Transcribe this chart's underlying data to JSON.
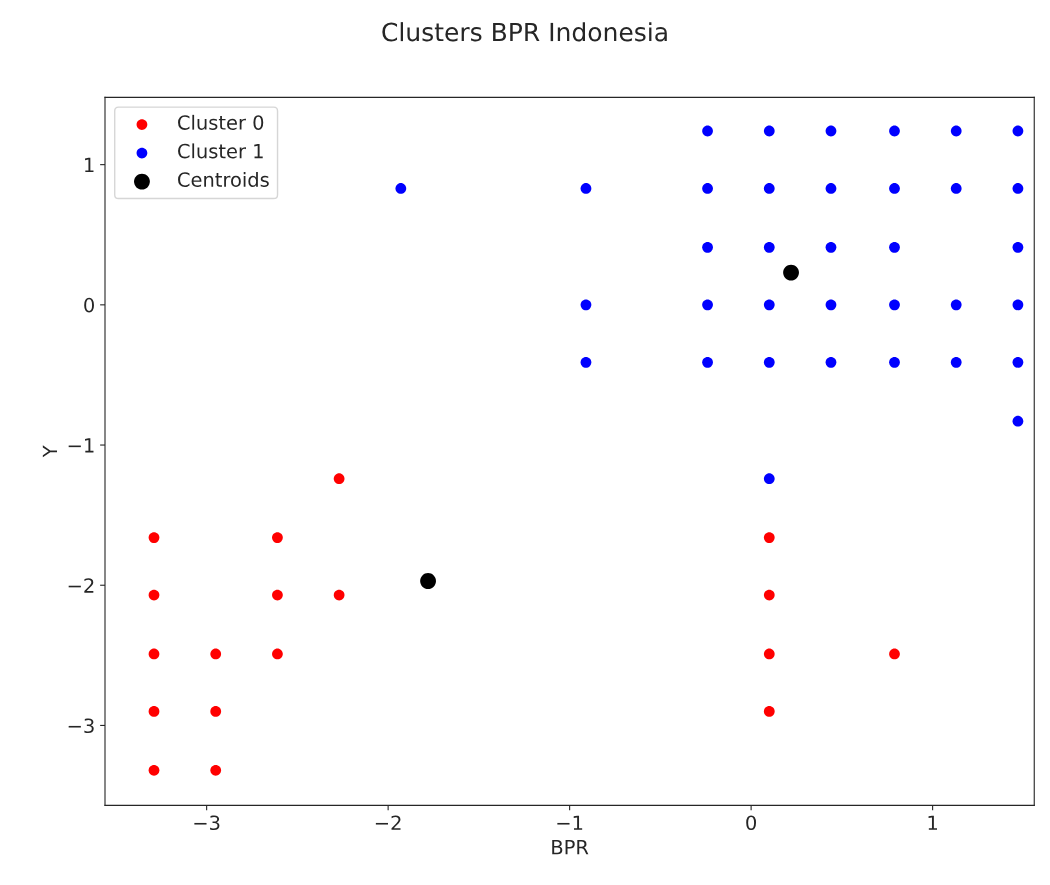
{
  "chart_data": {
    "type": "scatter",
    "title": "Clusters BPR Indonesia",
    "xlabel": "BPR",
    "ylabel": "Y",
    "xlim": [
      -3.56,
      1.56
    ],
    "ylim": [
      -3.57,
      1.48
    ],
    "xticks": [
      -3,
      -2,
      -1,
      0,
      1
    ],
    "yticks": [
      -3,
      -2,
      -1,
      0,
      1
    ],
    "grid": false,
    "legend": "top left",
    "marker": "circle",
    "series": [
      {
        "name": "Cluster 0",
        "color": "#ff0000",
        "x": [
          -3.29,
          -3.29,
          -3.29,
          -3.29,
          -3.29,
          -2.95,
          -2.95,
          -2.95,
          -2.61,
          -2.61,
          -2.61,
          -2.27,
          -2.27,
          0.1,
          0.1,
          0.1,
          0.1,
          0.79
        ],
        "values": [
          -1.66,
          -2.07,
          -2.49,
          -2.9,
          -3.32,
          -2.49,
          -2.9,
          -3.32,
          -1.66,
          -2.07,
          -2.49,
          -1.24,
          -2.07,
          -1.66,
          -2.07,
          -2.49,
          -2.9,
          -2.49
        ]
      },
      {
        "name": "Cluster 1",
        "color": "#0000ff",
        "x": [
          -1.93,
          -0.91,
          -0.91,
          -0.91,
          -0.24,
          -0.24,
          -0.24,
          -0.24,
          -0.24,
          0.1,
          0.1,
          0.1,
          0.1,
          0.1,
          0.1,
          0.44,
          0.44,
          0.44,
          0.44,
          0.44,
          0.79,
          0.79,
          0.79,
          0.79,
          0.79,
          1.13,
          1.13,
          1.13,
          1.13,
          1.47,
          1.47,
          1.47,
          1.47,
          1.47,
          1.47
        ],
        "values": [
          0.83,
          0.83,
          0,
          -0.41,
          1.24,
          0.83,
          0.41,
          0,
          -0.41,
          1.24,
          0.83,
          0.41,
          0,
          -0.41,
          -1.24,
          1.24,
          0.83,
          0.41,
          0,
          -0.41,
          1.24,
          0.83,
          0.41,
          0,
          -0.41,
          1.24,
          0.83,
          0,
          -0.41,
          1.24,
          0.83,
          0.41,
          0,
          -0.41,
          -0.83
        ]
      },
      {
        "name": "Centroids",
        "color": "#000000",
        "x": [
          0.22,
          -1.78
        ],
        "values": [
          0.23,
          -1.97
        ]
      }
    ]
  }
}
